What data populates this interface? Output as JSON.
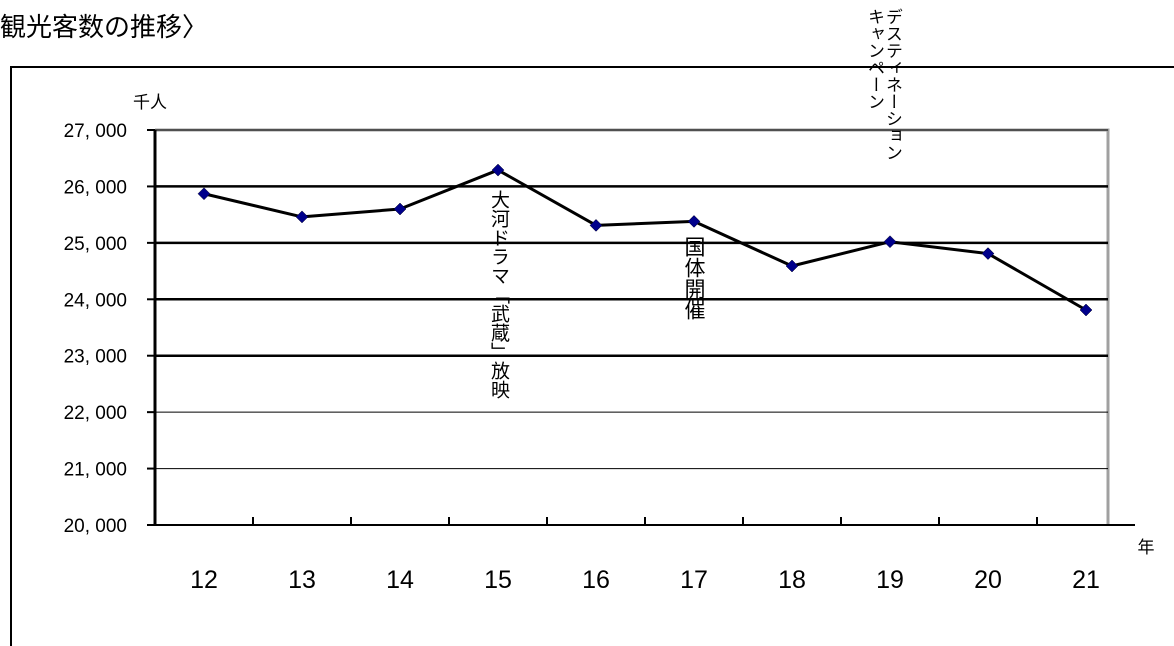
{
  "page": {
    "title": "観光客数の推移〉"
  },
  "chart_data": {
    "type": "line",
    "title": "",
    "x_unit": "年",
    "y_unit": "千人",
    "categories": [
      "12",
      "13",
      "14",
      "15",
      "16",
      "17",
      "18",
      "19",
      "20",
      "21"
    ],
    "series": [
      {
        "values": [
          25870,
          25460,
          25600,
          26290,
          25310,
          25380,
          24590,
          25020,
          24810,
          23810
        ],
        "color": "#000000",
        "marker_color": "#00008b"
      }
    ],
    "ylim": [
      20000,
      27000
    ],
    "y_ticks": [
      "20, 000",
      "21, 000",
      "22, 000",
      "23, 000",
      "24, 000",
      "25, 000",
      "26, 000",
      "27, 000"
    ],
    "y_tick_values": [
      20000,
      21000,
      22000,
      23000,
      24000,
      25000,
      26000,
      27000
    ],
    "grid": true,
    "annotations": [
      {
        "text": "大河ドラマ「武蔵」放映",
        "category": "15"
      },
      {
        "text": "国体開催",
        "category": "17"
      },
      {
        "text": "デスティネーション\nキャンペーン",
        "category": "19"
      }
    ]
  }
}
